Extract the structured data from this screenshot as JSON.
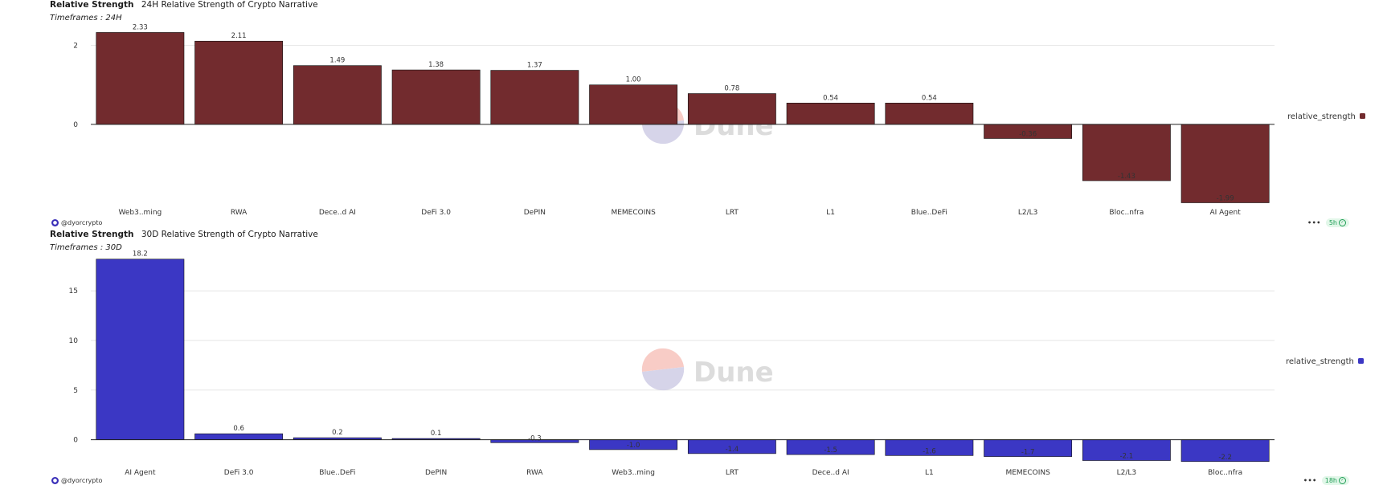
{
  "panels": [
    {
      "query_name": "Relative Strength",
      "title": "24H Relative Strength of Crypto Narrative",
      "subtitle": "Timeframes : 24H",
      "author": "@dyorcrypto",
      "freshness": "5h",
      "legend_label": "relative_strength"
    },
    {
      "query_name": "Relative Strength",
      "title": "30D Relative Strength of Crypto Narrative",
      "subtitle": "Timeframes : 30D",
      "author": "@dyorcrypto",
      "freshness": "18h",
      "legend_label": "relative_strength"
    }
  ],
  "watermark": "Dune",
  "chart_data": [
    {
      "type": "bar",
      "categories": [
        "Web3..ming",
        "RWA",
        "Dece..d AI",
        "DeFi 3.0",
        "DePIN",
        "MEMECOINS",
        "LRT",
        "L1",
        "Blue..DeFi",
        "L2/L3",
        "Bloc..nfra",
        "AI Agent"
      ],
      "series": [
        {
          "name": "relative_strength",
          "values": [
            2.33,
            2.11,
            1.49,
            1.38,
            1.37,
            1.0,
            0.78,
            0.54,
            0.54,
            -0.36,
            -1.43,
            -1.99
          ]
        }
      ],
      "labels": [
        "2.33",
        "2.11",
        "1.49",
        "1.38",
        "1.37",
        "1.00",
        "0.78",
        "0.54",
        "0.54",
        "-0.36",
        "-1.43",
        "-1.99"
      ],
      "yticks": [
        0,
        2
      ],
      "ylim": [
        -2.0,
        2.4
      ],
      "color": "#722b2e",
      "grid": true,
      "legend": "right"
    },
    {
      "type": "bar",
      "categories": [
        "AI Agent",
        "DeFi 3.0",
        "Blue..DeFi",
        "DePIN",
        "RWA",
        "Web3..ming",
        "LRT",
        "Dece..d AI",
        "L1",
        "MEMECOINS",
        "L2/L3",
        "Bloc..nfra"
      ],
      "series": [
        {
          "name": "relative_strength",
          "values": [
            18.2,
            0.6,
            0.2,
            0.1,
            -0.3,
            -1.0,
            -1.4,
            -1.5,
            -1.6,
            -1.7,
            -2.1,
            -2.2
          ]
        }
      ],
      "labels": [
        "18.2",
        "0.6",
        "0.2",
        "0.1",
        "-0.3",
        "-1.0",
        "-1.4",
        "-1.5",
        "-1.6",
        "-1.7",
        "-2.1",
        "-2.2"
      ],
      "yticks": [
        0,
        5,
        10,
        15
      ],
      "ylim": [
        -2.3,
        18.5
      ],
      "color": "#3b37c4",
      "grid": true,
      "legend": "right"
    }
  ]
}
